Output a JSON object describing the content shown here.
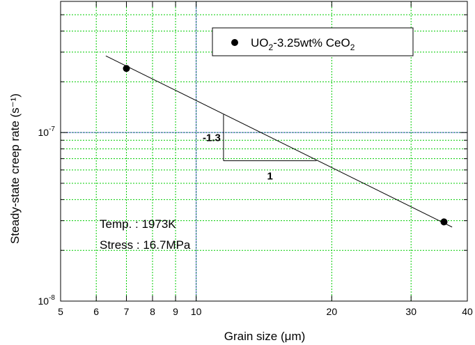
{
  "chart_data": {
    "type": "scatter",
    "xlabel": "Grain size (μm)",
    "ylabel": "Steady-state creep rate (s⁻¹)",
    "x_scale": "log",
    "y_scale": "log",
    "xlim": [
      5,
      40
    ],
    "ylim": [
      1e-08,
      6e-07
    ],
    "x_ticks": [
      5,
      6,
      7,
      8,
      9,
      10,
      20,
      30,
      40
    ],
    "x_tick_labels": [
      "5",
      "6",
      "7",
      "8",
      "9",
      "10",
      "20",
      "30",
      "40"
    ],
    "y_ticks": [
      1e-08,
      1e-07
    ],
    "y_tick_labels": [
      {
        "base": "10",
        "exp": "-8"
      },
      {
        "base": "10",
        "exp": "-7"
      }
    ],
    "grid": true,
    "grid_color": "#00cc00",
    "highlight_lines_color": "#0000cc",
    "series": [
      {
        "name": "UO₂-3.25wt% CeO₂",
        "marker": "circle",
        "color": "#000000",
        "points": [
          {
            "x": 7.0,
            "y": 2.4e-07
          },
          {
            "x": 35.5,
            "y": 2.95e-08
          }
        ]
      }
    ],
    "fit_line": {
      "x": [
        6.3,
        37.0
      ],
      "y": [
        2.85e-07,
        2.75e-08
      ],
      "color": "#000000"
    },
    "slope_triangle": {
      "corner": {
        "x": 11.5,
        "y": 6.8e-08
      },
      "top": {
        "x": 11.5,
        "y": 1.28e-07
      },
      "right": {
        "x": 18.5,
        "y": 6.8e-08
      },
      "vertical_label": "-1.3",
      "horizontal_label": "1"
    },
    "legend": {
      "position": "top-right",
      "entry": {
        "base": "UO",
        "sub1": "2",
        "middle": "-3.25wt% CeO",
        "sub2": "2"
      }
    },
    "annotations": [
      "Temp. : 1973K",
      "Stress : 16.7MPa"
    ]
  }
}
